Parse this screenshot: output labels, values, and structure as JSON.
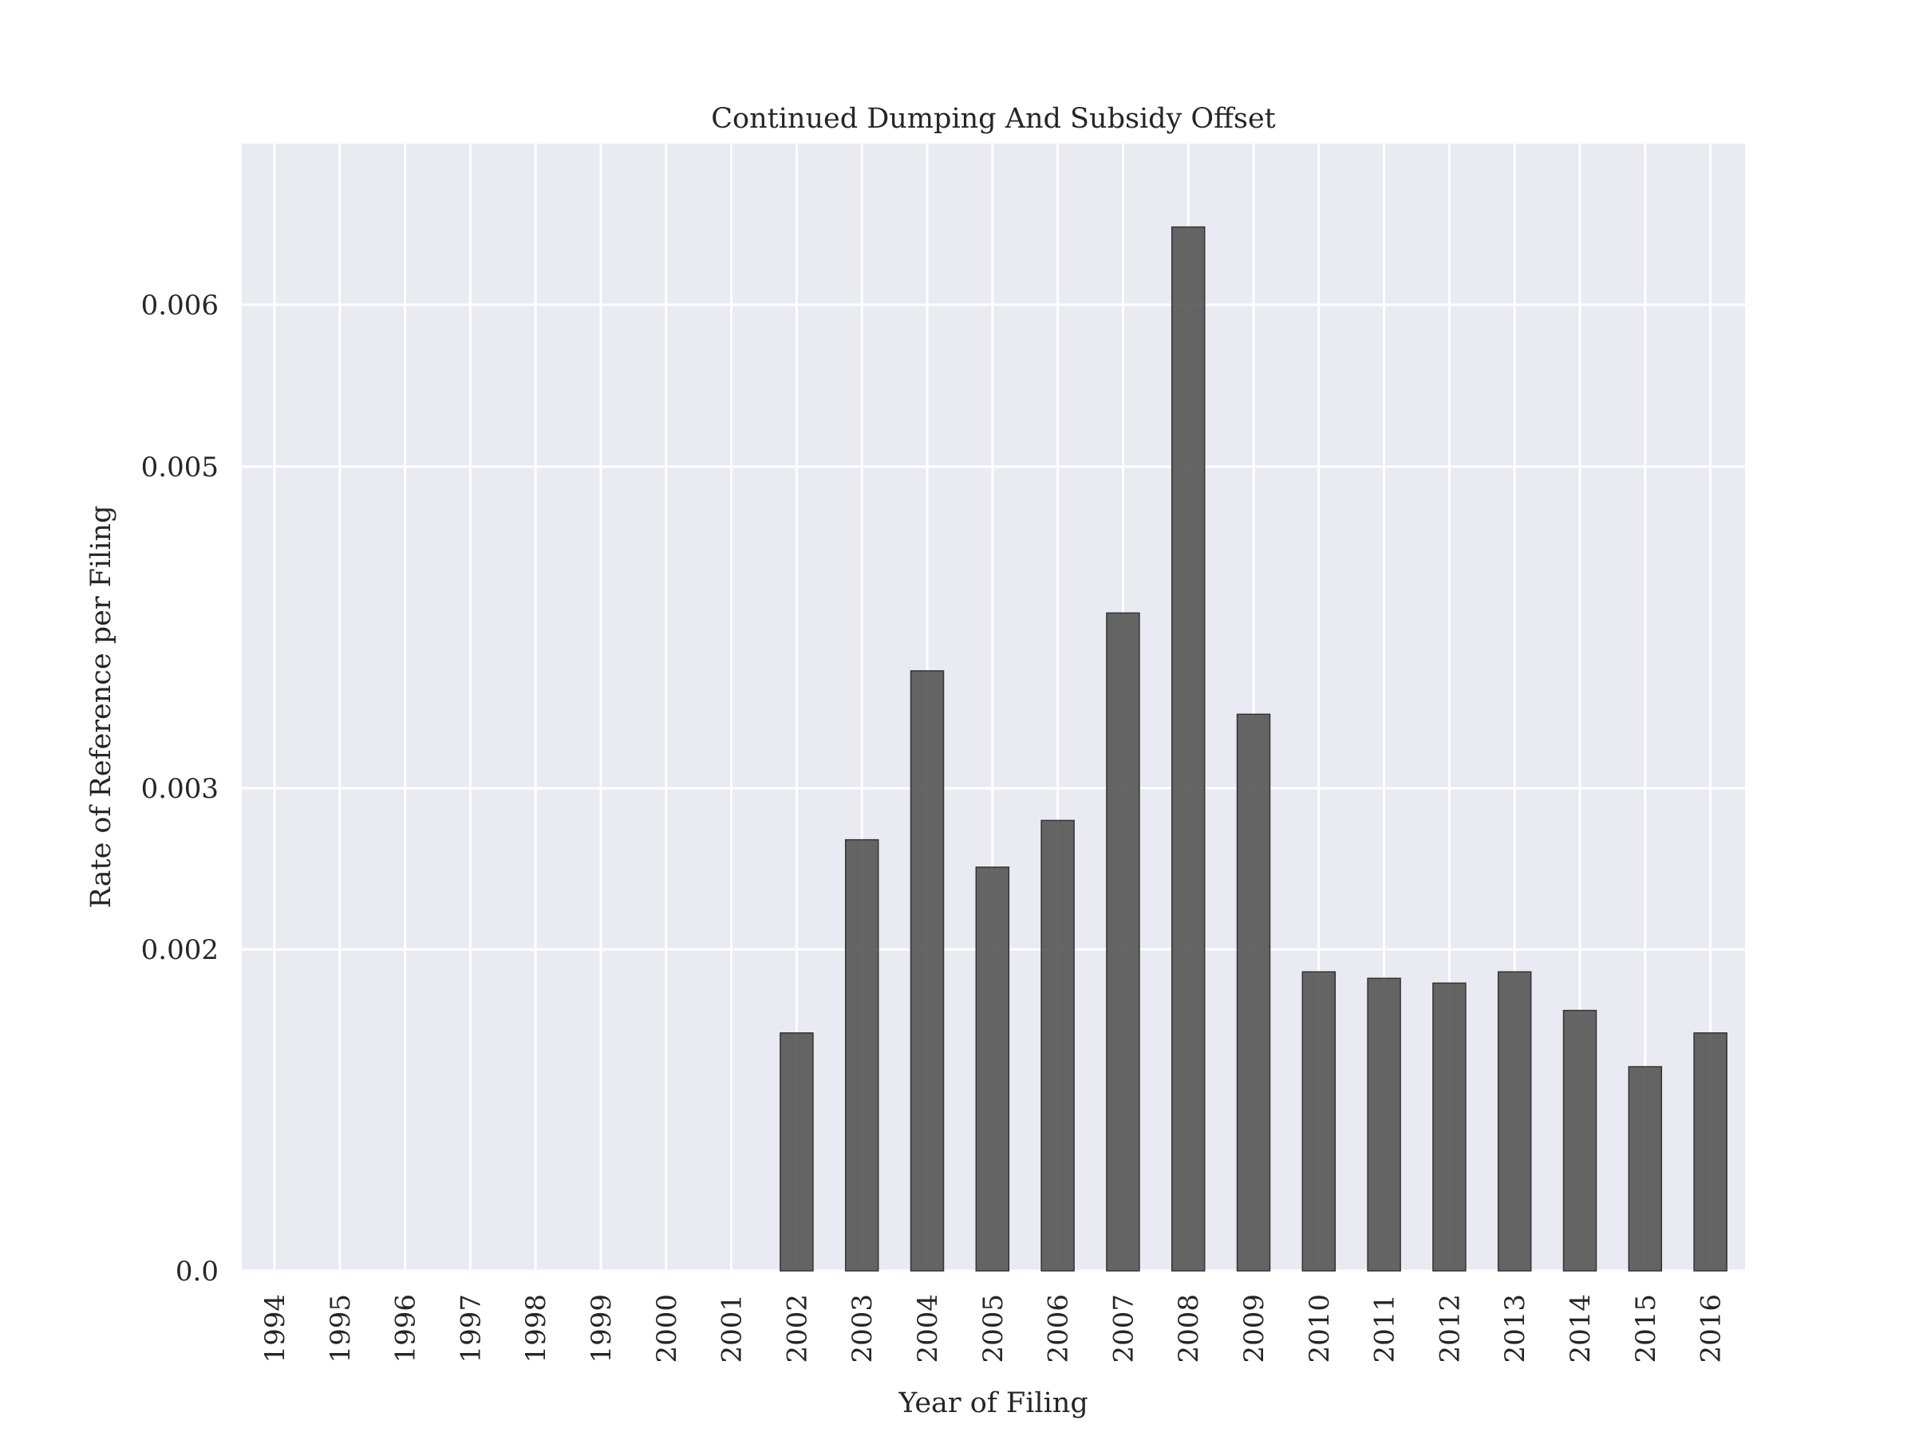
{
  "chart_data": {
    "type": "bar",
    "title": "Continued Dumping And Subsidy Offset",
    "xlabel": "Year of Filing",
    "ylabel": "Rate of Reference per Filing",
    "categories": [
      "1994",
      "1995",
      "1996",
      "1997",
      "1998",
      "1999",
      "2000",
      "2001",
      "2002",
      "2003",
      "2004",
      "2005",
      "2006",
      "2007",
      "2008",
      "2009",
      "2010",
      "2011",
      "2012",
      "2013",
      "2014",
      "2015",
      "2016"
    ],
    "values": [
      0,
      0,
      0,
      0,
      0,
      0,
      0,
      0,
      0.00148,
      0.00268,
      0.00373,
      0.00251,
      0.0028,
      0.00409,
      0.00648,
      0.00346,
      0.00186,
      0.00182,
      0.00179,
      0.00186,
      0.00162,
      0.00127,
      0.00148
    ],
    "yticks": [
      0.0,
      0.002,
      0.003,
      0.005,
      0.006
    ],
    "ytick_labels": [
      "0.0",
      "0.002",
      "0.003",
      "0.005",
      "0.006"
    ],
    "ylim": [
      0,
      0.007
    ],
    "bar_color": "#555555",
    "background_color": "#eaeaf2",
    "grid": true,
    "x_tick_rotation": "vertical"
  }
}
